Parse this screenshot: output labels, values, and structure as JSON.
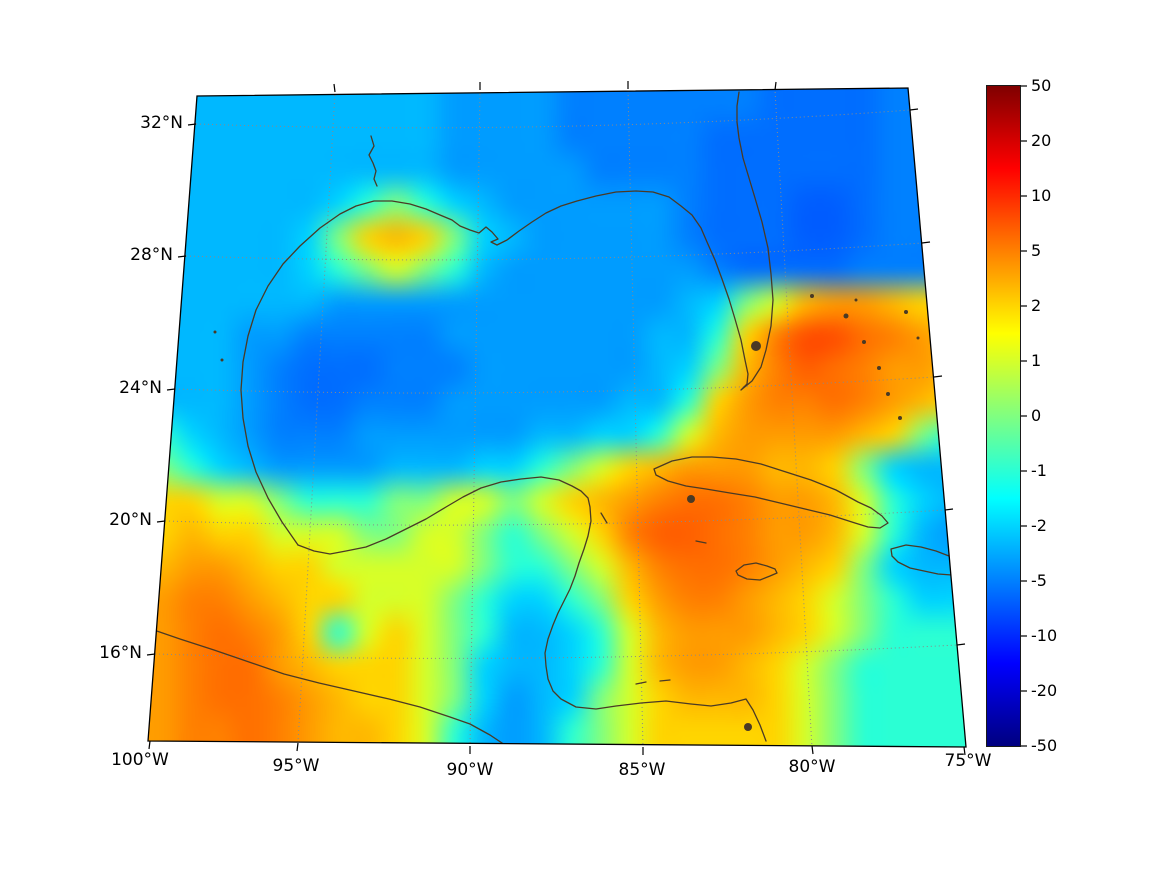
{
  "figure": {
    "background": "#ffffff",
    "content_description": "Filled-contour field over Gulf of Mexico and Caribbean map with nonlinear colorbar"
  },
  "map": {
    "longitude_labels": [
      "100°W",
      "95°W",
      "90°W",
      "85°W",
      "80°W",
      "75°W"
    ],
    "latitude_labels": [
      "32°N",
      "28°N",
      "24°N",
      "20°N",
      "16°N"
    ],
    "coastline_color": "#4a3a25",
    "graticule_color": "#8a8a8a",
    "boundary_color": "#000000"
  },
  "colorbar": {
    "tick_labels": [
      "50",
      "20",
      "10",
      "5",
      "2",
      "1",
      "0",
      "-1",
      "-2",
      "-5",
      "-10",
      "-20",
      "-50"
    ],
    "colormap": "jet",
    "top_color": "#7f0000",
    "zero_color": "#7fff7f",
    "bottom_color": "#00007f"
  },
  "chart_data": {
    "type": "heatmap",
    "title": "",
    "x_tick_labels": [
      "100°W",
      "95°W",
      "90°W",
      "85°W",
      "80°W",
      "75°W"
    ],
    "y_tick_labels": [
      "32°N",
      "28°N",
      "24°N",
      "20°N",
      "16°N"
    ],
    "colorbar_ticks": [
      50,
      20,
      10,
      5,
      2,
      1,
      0,
      -1,
      -2,
      -5,
      -10,
      -20,
      -50
    ],
    "scale": "symlog",
    "colormap": "jet",
    "value_range": [
      -50,
      50
    ],
    "grid_cols": 28,
    "grid_rows": 20,
    "values": [
      [
        -3,
        -3,
        -3,
        -3,
        -3,
        -3,
        -3,
        -3,
        -3,
        -3,
        -4,
        -4,
        -4,
        -4,
        -5,
        -5,
        -5,
        -5,
        -5,
        -5,
        -5,
        -6,
        -6,
        -6,
        -6,
        -5,
        -5,
        -5
      ],
      [
        -3,
        -3,
        -3,
        -3,
        -3,
        -3,
        -3,
        -3,
        -3,
        -3,
        -4,
        -4,
        -4,
        -4,
        -5,
        -5,
        -5,
        -5,
        -5,
        -6,
        -6,
        -6,
        -6,
        -6,
        -6,
        -5,
        -5,
        -5
      ],
      [
        -3,
        -3,
        -3,
        -3,
        -3,
        -3,
        -3,
        -3,
        -3,
        -3,
        -4,
        -4,
        -4,
        -4,
        -4,
        -5,
        -5,
        -5,
        -5,
        -6,
        -6,
        -6,
        -6,
        -6,
        -6,
        -5,
        -5,
        -5
      ],
      [
        -3,
        -3,
        -3,
        -3,
        -3,
        -3,
        -2,
        -1,
        0,
        -1,
        -2,
        -3,
        -4,
        -4,
        -4,
        -4,
        -4,
        -4,
        -5,
        -6,
        -6,
        -6,
        -7,
        -7,
        -6,
        -5,
        -5,
        -5
      ],
      [
        -3,
        -3,
        -3,
        -3,
        -3,
        -2,
        0,
        2,
        3,
        2,
        0,
        -2,
        -3,
        -4,
        -4,
        -4,
        -4,
        -4,
        -5,
        -6,
        -6,
        -6,
        -7,
        -7,
        -6,
        -5,
        -5,
        -5
      ],
      [
        -3,
        -3,
        -3,
        -3,
        -3,
        -2,
        -1,
        0,
        1,
        0,
        -1,
        -3,
        -4,
        -4,
        -4,
        -4,
        -4,
        -4,
        -4,
        -5,
        -6,
        -6,
        -6,
        -6,
        -5,
        -5,
        -5,
        -5
      ],
      [
        -3,
        -3,
        -3,
        -3,
        -3,
        -3,
        -4,
        -4,
        -4,
        -4,
        -4,
        -4,
        -4,
        -4,
        -4,
        -4,
        -4,
        -4,
        -3,
        -2,
        0,
        1,
        3,
        4,
        4,
        3,
        2,
        2
      ],
      [
        -3,
        -3,
        -3,
        -4,
        -4,
        -5,
        -5,
        -5,
        -5,
        -5,
        -4,
        -4,
        -4,
        -4,
        -4,
        -4,
        -4,
        -3,
        -3,
        -1,
        2,
        5,
        8,
        8,
        6,
        5,
        4,
        3
      ],
      [
        -3,
        -3,
        -3,
        -4,
        -5,
        -6,
        -6,
        -6,
        -5,
        -5,
        -5,
        -4,
        -4,
        -4,
        -4,
        -4,
        -4,
        -3,
        -2,
        0,
        3,
        5,
        7,
        6,
        5,
        4,
        4,
        3
      ],
      [
        -3,
        -3,
        -3,
        -4,
        -5,
        -6,
        -6,
        -5,
        -5,
        -5,
        -4,
        -4,
        -4,
        -4,
        -4,
        -4,
        -3,
        -3,
        -1,
        2,
        4,
        5,
        5,
        6,
        5,
        4,
        3,
        2
      ],
      [
        -1,
        -2,
        -3,
        -4,
        -5,
        -5,
        -5,
        -4,
        -4,
        -4,
        -4,
        -4,
        -4,
        -3,
        -3,
        -2,
        -2,
        -1,
        1,
        3,
        4,
        4,
        4,
        4,
        3,
        2,
        0,
        -1
      ],
      [
        0,
        -1,
        -2,
        -3,
        -4,
        -4,
        -4,
        -4,
        -3,
        -3,
        -3,
        -2,
        -2,
        -1,
        0,
        1,
        2,
        3,
        4,
        4,
        4,
        3,
        3,
        2,
        0,
        -2,
        -3,
        -3
      ],
      [
        2,
        2,
        1,
        1,
        0,
        -1,
        -1,
        -1,
        0,
        0,
        1,
        1,
        0,
        1,
        2,
        3,
        4,
        5,
        6,
        6,
        5,
        4,
        4,
        3,
        1,
        -1,
        -2,
        -3
      ],
      [
        2,
        3,
        2,
        2,
        1,
        1,
        1,
        0,
        0,
        1,
        1,
        0,
        -1,
        0,
        1,
        2,
        5,
        7,
        7,
        6,
        5,
        4,
        4,
        3,
        1,
        -1,
        -3,
        -4
      ],
      [
        3,
        4,
        4,
        3,
        2,
        2,
        1,
        1,
        1,
        1,
        1,
        0,
        -1,
        -1,
        0,
        1,
        3,
        5,
        6,
        6,
        5,
        4,
        3,
        2,
        0,
        -2,
        -3,
        -3
      ],
      [
        4,
        5,
        5,
        4,
        3,
        2,
        2,
        1,
        1,
        1,
        0,
        -1,
        -2,
        -2,
        -1,
        0,
        2,
        4,
        5,
        5,
        4,
        3,
        2,
        1,
        0,
        -1,
        -2,
        -2
      ],
      [
        4,
        5,
        6,
        5,
        4,
        2,
        -1,
        1,
        2,
        1,
        0,
        -1,
        -3,
        -3,
        -2,
        -1,
        1,
        3,
        4,
        4,
        4,
        3,
        2,
        1,
        0,
        -1,
        -1,
        -1
      ],
      [
        4,
        5,
        6,
        6,
        4,
        3,
        2,
        2,
        2,
        1,
        0,
        -2,
        -3,
        -3,
        -2,
        -1,
        1,
        3,
        4,
        4,
        3,
        2,
        1,
        0,
        -1,
        -1,
        -1,
        -1
      ],
      [
        4,
        5,
        6,
        6,
        5,
        4,
        3,
        2,
        2,
        1,
        0,
        -2,
        -4,
        -3,
        -2,
        0,
        1,
        2,
        3,
        3,
        3,
        2,
        1,
        0,
        -1,
        -1,
        -1,
        -1
      ],
      [
        4,
        5,
        5,
        6,
        5,
        4,
        3,
        3,
        2,
        1,
        -1,
        -3,
        -4,
        -3,
        -1,
        0,
        1,
        2,
        2,
        2,
        2,
        2,
        1,
        0,
        -1,
        -1,
        -1,
        -1
      ]
    ]
  }
}
